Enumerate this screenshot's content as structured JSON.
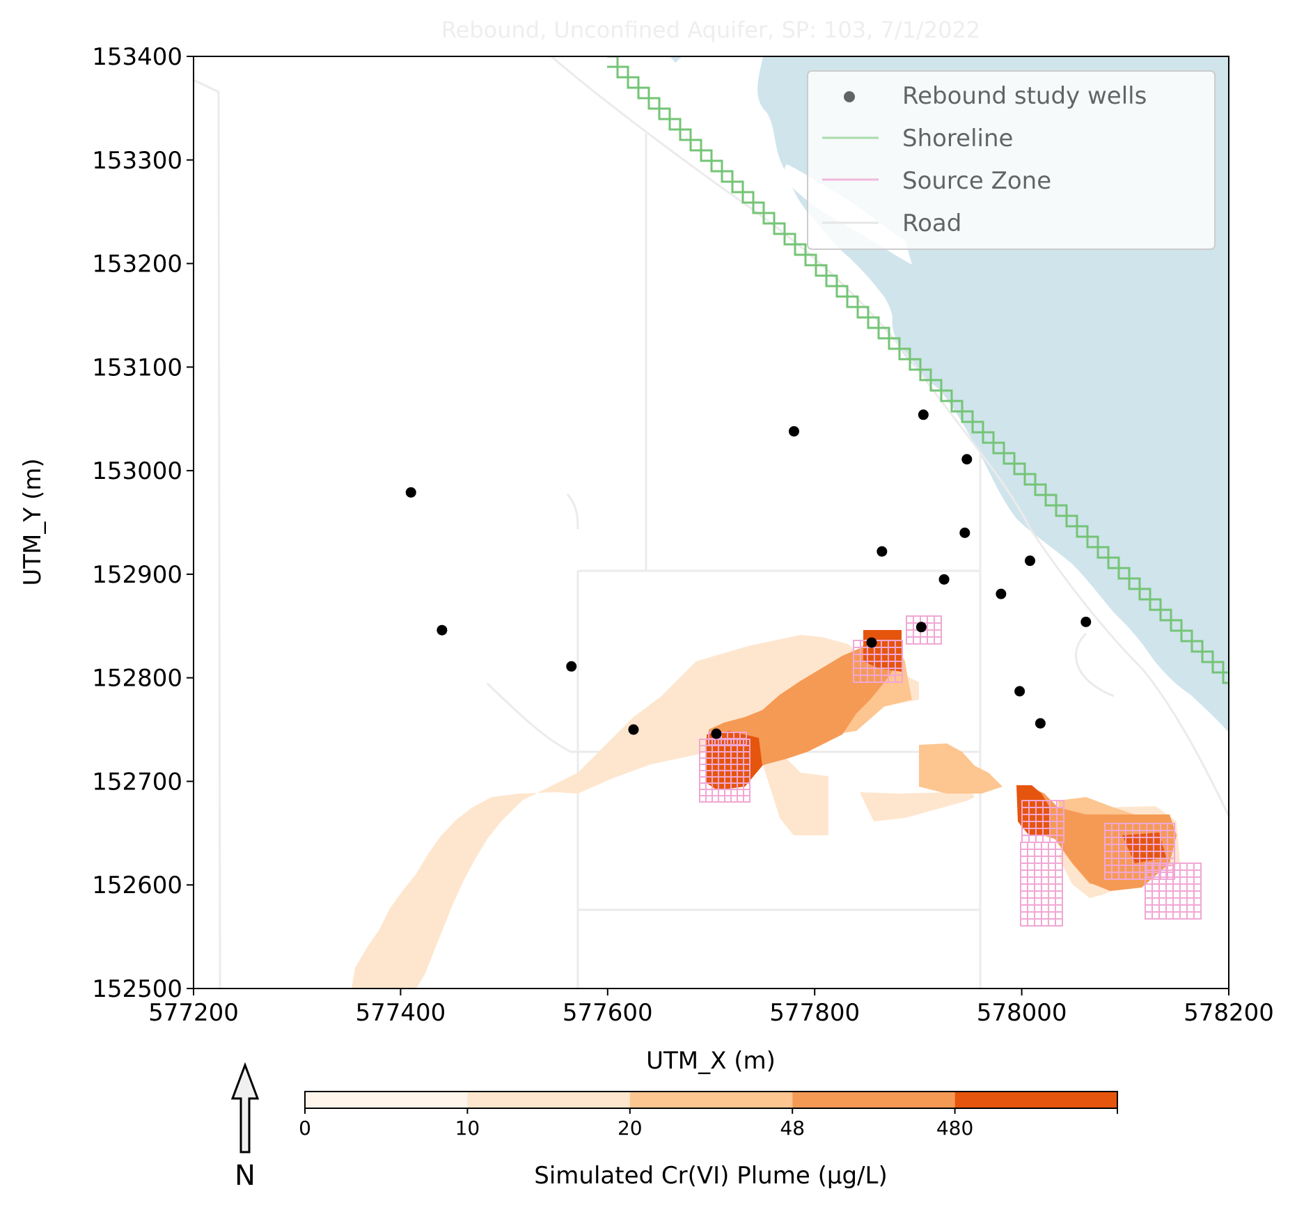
{
  "chart_data": {
    "type": "map",
    "title": "Rebound, Unconfined Aquifer, SP: 103, 7/1/2022",
    "xlabel": "UTM_X (m)",
    "ylabel": "UTM_Y (m)",
    "xlim": [
      577200,
      578200
    ],
    "ylim": [
      152500,
      153400
    ],
    "xticks": [
      "577200",
      "577400",
      "577600",
      "577800",
      "578000",
      "578200"
    ],
    "yticks": [
      "152500",
      "152600",
      "152700",
      "152800",
      "152900",
      "153000",
      "153100",
      "153200",
      "153300",
      "153400"
    ],
    "legend": {
      "position": "top-right",
      "entries": [
        {
          "label": "Rebound study wells",
          "symbol": "dot",
          "color": "#000000"
        },
        {
          "label": "Shoreline",
          "symbol": "line",
          "color": "#74c476"
        },
        {
          "label": "Source Zone",
          "symbol": "line",
          "color": "#f1a7d4"
        },
        {
          "label": "Road",
          "symbol": "line",
          "color": "#e6e6e6"
        }
      ]
    },
    "wells": [
      {
        "x": 577410,
        "y": 152979
      },
      {
        "x": 577780,
        "y": 153038
      },
      {
        "x": 577905,
        "y": 153054
      },
      {
        "x": 577947,
        "y": 153011
      },
      {
        "x": 577945,
        "y": 152940
      },
      {
        "x": 577865,
        "y": 152922
      },
      {
        "x": 577925,
        "y": 152895
      },
      {
        "x": 578008,
        "y": 152913
      },
      {
        "x": 577980,
        "y": 152881
      },
      {
        "x": 578062,
        "y": 152854
      },
      {
        "x": 577440,
        "y": 152846
      },
      {
        "x": 577903,
        "y": 152849
      },
      {
        "x": 577855,
        "y": 152834
      },
      {
        "x": 577565,
        "y": 152811
      },
      {
        "x": 577998,
        "y": 152787
      },
      {
        "x": 578018,
        "y": 152756
      },
      {
        "x": 577625,
        "y": 152750
      },
      {
        "x": 577705,
        "y": 152746
      }
    ],
    "colorbar": {
      "label": "Simulated Cr(VI) Plume (µg/L)",
      "tick_labels": [
        "0",
        "10",
        "20",
        "48",
        "480"
      ],
      "bins": [
        {
          "range": "0-10",
          "color": "#fff5eb"
        },
        {
          "range": "10-20",
          "color": "#fee6ce"
        },
        {
          "range": "20-48",
          "color": "#fdc590"
        },
        {
          "range": "48-480",
          "color": "#f59a55"
        },
        {
          "range": "480+",
          "color": "#e6550d"
        }
      ]
    },
    "water_color": "#d0e4ec",
    "north_arrow_label": "N"
  }
}
